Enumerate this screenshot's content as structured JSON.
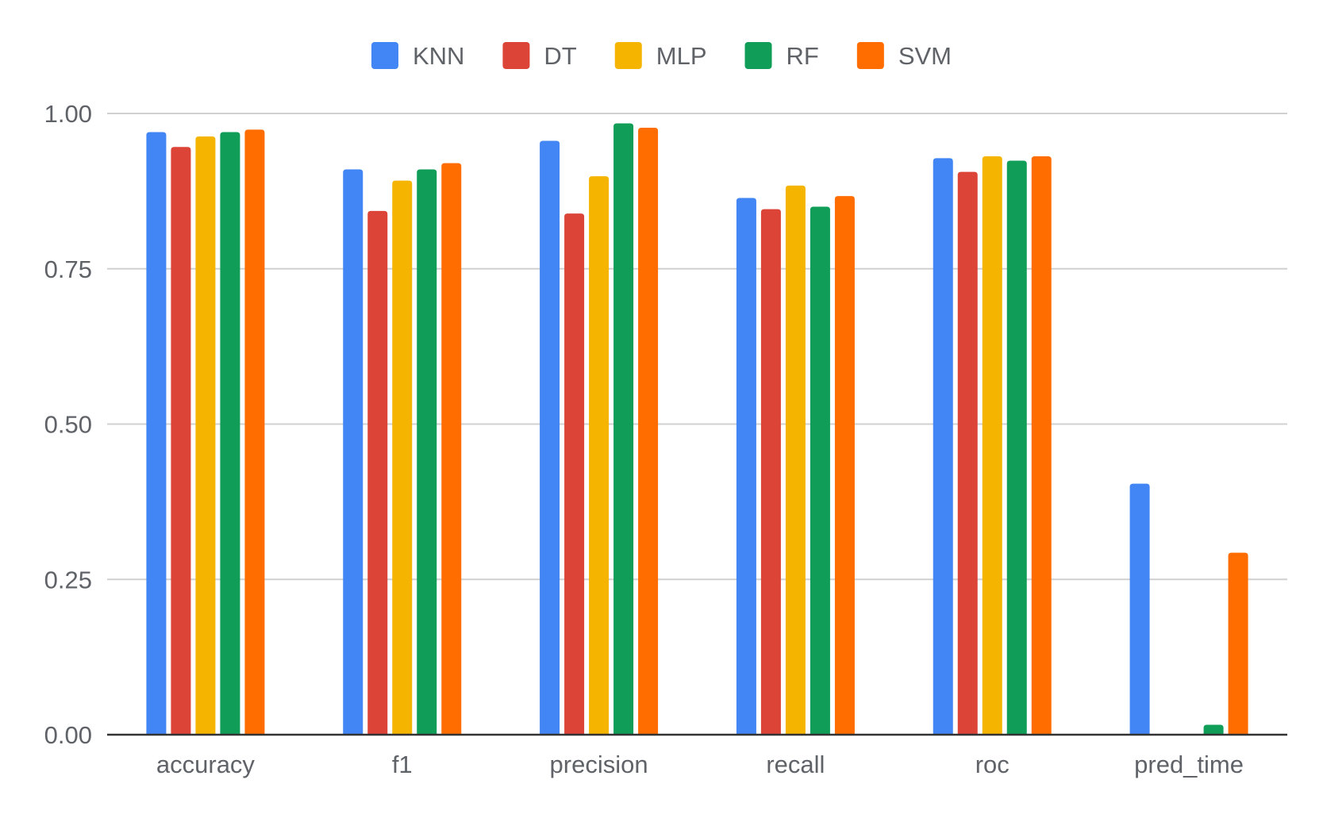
{
  "chart_data": {
    "type": "bar",
    "title": "",
    "xlabel": "",
    "ylabel": "",
    "categories": [
      "accuracy",
      "f1",
      "precision",
      "recall",
      "roc",
      "pred_time"
    ],
    "series": [
      {
        "name": "KNN",
        "color": "#4285f4",
        "values": [
          0.97,
          0.91,
          0.956,
          0.864,
          0.928,
          0.404
        ]
      },
      {
        "name": "DT",
        "color": "#db4437",
        "values": [
          0.946,
          0.843,
          0.839,
          0.846,
          0.906,
          0.0
        ]
      },
      {
        "name": "MLP",
        "color": "#f4b400",
        "values": [
          0.963,
          0.892,
          0.899,
          0.884,
          0.931,
          0.0
        ]
      },
      {
        "name": "RF",
        "color": "#0f9d58",
        "values": [
          0.97,
          0.91,
          0.984,
          0.85,
          0.924,
          0.016
        ]
      },
      {
        "name": "SVM",
        "color": "#ff6d01",
        "values": [
          0.974,
          0.92,
          0.977,
          0.867,
          0.931,
          0.293
        ]
      }
    ],
    "ylim": [
      0,
      1.0
    ],
    "yticks": [
      "0.00",
      "0.25",
      "0.50",
      "0.75",
      "1.00"
    ],
    "grid": true,
    "legend_position": "top-center"
  }
}
